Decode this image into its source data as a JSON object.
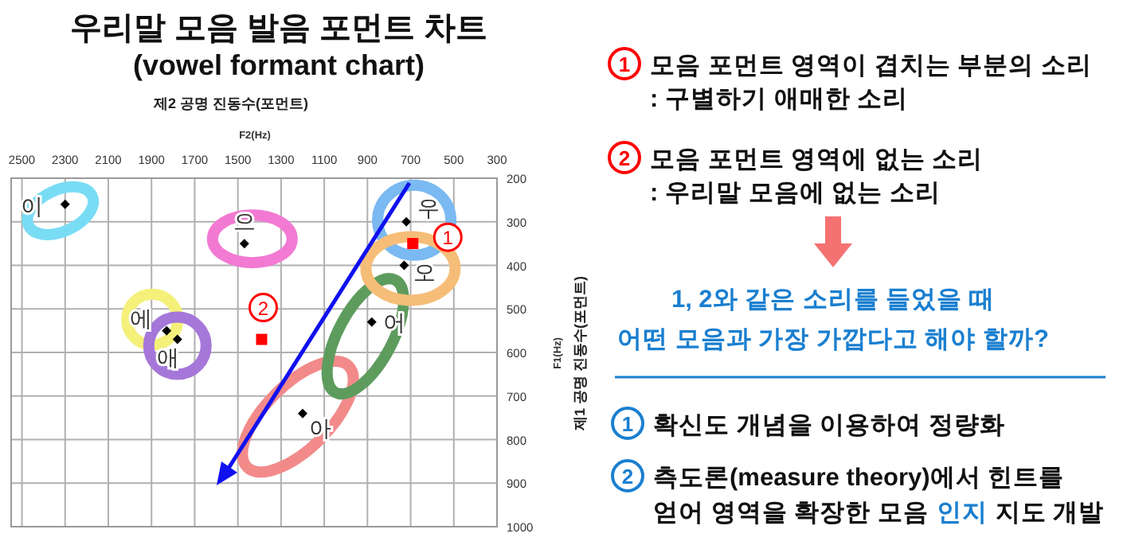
{
  "chart_data": [
    {
      "type": "scatter",
      "title": "우리말 모음 발음 포먼트 차트",
      "subtitle": "(vowel formant chart)",
      "xlabel": "F2(Hz)",
      "ylabel": "F1(Hz)",
      "annotations": [
        "제2 공명 진동수(포먼트)",
        "제1 공명 진동수(포먼트)",
        {
          "text": "1",
          "x": 690,
          "y": 350
        },
        {
          "text": "2",
          "x": 1390,
          "y": 570
        }
      ],
      "xlim": [
        2550,
        300
      ],
      "xticks": [
        2500,
        2300,
        2100,
        1900,
        1700,
        1500,
        1300,
        1100,
        900,
        700,
        500,
        300
      ],
      "ylim": [
        1000,
        200
      ],
      "yticks": [
        200,
        300,
        400,
        500,
        600,
        700,
        800,
        900,
        1000
      ],
      "grid": true,
      "marker": "diamond",
      "series": [
        {
          "name": "이",
          "color": "#000000",
          "x": [
            2300
          ],
          "values": [
            260
          ]
        },
        {
          "name": "으",
          "color": "#000000",
          "x": [
            1470
          ],
          "values": [
            350
          ]
        },
        {
          "name": "에",
          "color": "#000000",
          "x": [
            1830
          ],
          "values": [
            550
          ]
        },
        {
          "name": "애",
          "color": "#000000",
          "x": [
            1780
          ],
          "values": [
            570
          ]
        },
        {
          "name": "아",
          "color": "#000000",
          "x": [
            1200
          ],
          "values": [
            740
          ]
        },
        {
          "name": "어",
          "color": "#000000",
          "x": [
            880
          ],
          "values": [
            530
          ]
        },
        {
          "name": "우",
          "color": "#000000",
          "x": [
            720
          ],
          "values": [
            300
          ]
        },
        {
          "name": "오",
          "color": "#000000",
          "x": [
            730
          ],
          "values": [
            400
          ]
        },
        {
          "color": "#ff0000",
          "marker": "square",
          "x": [
            690,
            1390
          ],
          "values": [
            350,
            570
          ]
        }
      ]
    },
    {
      "type": "other",
      "annotations": [
        "1",
        "모음 포먼트 영역이 겹치는 부분의 소리",
        ": 구별하기 애매한 소리",
        "2",
        "모음 포먼트 영역에 없는 소리",
        ": 우리말 모음에 없는 소리",
        "1, 2와 같은 소리를 들었을 때",
        "어떤 모음과 가장 가깝다고 해야 할까?",
        "1",
        "확신도 개념을 이용하여 정량화",
        "2",
        "측도론(measure theory)에서 힌트를",
        "얻어 영역을 확장한 모음",
        "인지",
        "지도 개발"
      ]
    }
  ]
}
